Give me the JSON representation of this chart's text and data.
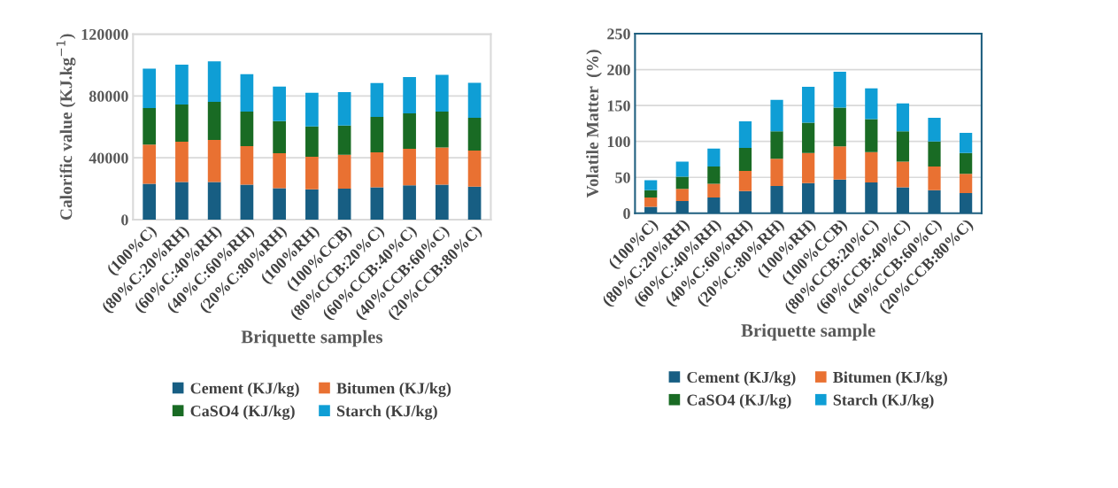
{
  "chart_data": [
    {
      "type": "bar",
      "stacked": true,
      "xlabel": "Briquette samples",
      "ylabel": "Calorific value (KJ.kg$^{−1}$)",
      "categories": [
        "(100%C)",
        "(80%C:20%RH)",
        "(60%C:40%RH)",
        "(40%C:60%RH)",
        "(20%C:80%RH)",
        "(100%RH)",
        "(100%CCB)",
        "(80%CCB:20%C)",
        "(60%CCB:40%C)",
        "(40%CCB:60%C)",
        "(20%CCB:80%C)"
      ],
      "series": [
        {
          "name": "Cement (KJ/kg)",
          "color": "#175e83",
          "values": [
            23200,
            24300,
            24300,
            22600,
            20300,
            19600,
            20000,
            20900,
            22200,
            22600,
            21300
          ]
        },
        {
          "name": "Bitumen (KJ/kg)",
          "color": "#e97132",
          "values": [
            25400,
            26100,
            27200,
            24900,
            22600,
            21100,
            22000,
            22600,
            23600,
            24100,
            23400
          ]
        },
        {
          "name": "CaSO4 (KJ/kg)",
          "color": "#196b24",
          "values": [
            23600,
            24100,
            24700,
            22400,
            20800,
            19600,
            18800,
            23000,
            23000,
            23200,
            21200
          ]
        },
        {
          "name": "Starch (KJ/kg)",
          "color": "#0f9ed5",
          "values": [
            25500,
            25700,
            26200,
            24200,
            22400,
            21800,
            21700,
            21900,
            23400,
            23800,
            22600
          ]
        }
      ],
      "ylim": [
        0,
        120000
      ],
      "yticks": [
        0,
        40000,
        80000,
        120000
      ],
      "grid": "y",
      "legend": "bottom"
    },
    {
      "type": "bar",
      "stacked": true,
      "xlabel": "Briquette sample",
      "ylabel": "Volatile Matter  (%)",
      "categories": [
        "(100%C)",
        "(80%C:20%RH)",
        "(60%C:40%RH)",
        "(40%C:60%RH)",
        "(20%C:80%RH)",
        "(100%RH)",
        "(100%CCB)",
        "(80%CCB:20%C)",
        "(60%CCB:40%C)",
        "(40%CCB:60%C)",
        "(20%CCB:80%C)"
      ],
      "series": [
        {
          "name": "Cement (KJ/kg)",
          "color": "#175e83",
          "values": [
            9,
            17,
            22,
            31,
            38,
            42,
            47,
            43,
            36,
            32,
            28
          ]
        },
        {
          "name": "Bitumen (KJ/kg)",
          "color": "#e97132",
          "values": [
            13,
            17,
            19,
            28,
            38,
            42,
            46,
            42,
            36,
            33,
            27
          ]
        },
        {
          "name": "CaSO4 (KJ/kg)",
          "color": "#196b24",
          "values": [
            10,
            17,
            24,
            32,
            38,
            42,
            54,
            46,
            42,
            35,
            29
          ]
        },
        {
          "name": "Starch (KJ/kg)",
          "color": "#0f9ed5",
          "values": [
            14,
            21,
            25,
            37,
            44,
            50,
            50,
            43,
            39,
            33,
            28
          ]
        }
      ],
      "ylim": [
        0,
        250
      ],
      "yticks": [
        0,
        50,
        100,
        150,
        200,
        250
      ],
      "grid": "y",
      "legend": "bottom"
    }
  ]
}
